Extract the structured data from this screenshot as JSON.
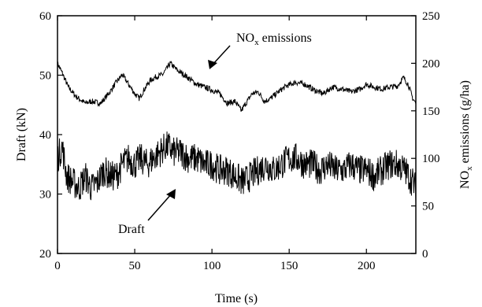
{
  "chart_data": {
    "type": "line",
    "xlabel": "Time (s)",
    "ylabel_left": "Draft (kN)",
    "ylabel_right": {
      "main": "NO",
      "sub": "x",
      "rest": " emissions (g/ha)"
    },
    "xlim": [
      0,
      232
    ],
    "ylim_left": [
      20,
      60
    ],
    "ylim_right": [
      0,
      250
    ],
    "x_ticks": [
      0,
      50,
      100,
      150,
      200
    ],
    "y_ticks_left": [
      20,
      30,
      40,
      50,
      60
    ],
    "y_ticks_right": [
      0,
      50,
      100,
      150,
      200,
      250
    ],
    "grid": false,
    "annotations": [
      {
        "text_main": "NO",
        "text_sub": "x",
        "text_rest": " emissions",
        "series": "nox"
      },
      {
        "text": "Draft",
        "series": "draft"
      }
    ],
    "series": [
      {
        "id": "nox",
        "axis": "right",
        "color": "#000000",
        "noise": 3.0,
        "x": [
          0,
          3,
          7,
          12,
          18,
          22,
          28,
          34,
          38,
          42,
          46,
          50,
          53,
          56,
          60,
          64,
          68,
          71,
          73,
          78,
          82,
          86,
          90,
          95,
          100,
          105,
          110,
          115,
          119,
          122,
          126,
          130,
          134,
          138,
          143,
          148,
          154,
          160,
          166,
          172,
          178,
          184,
          190,
          196,
          200,
          205,
          210,
          215,
          220,
          224,
          227,
          230,
          232
        ],
        "y": [
          200,
          190,
          175,
          165,
          158,
          160,
          158,
          170,
          180,
          188,
          178,
          168,
          163,
          172,
          182,
          186,
          188,
          195,
          200,
          192,
          188,
          183,
          178,
          175,
          172,
          168,
          158,
          160,
          150,
          158,
          168,
          170,
          160,
          163,
          170,
          176,
          180,
          178,
          172,
          168,
          175,
          173,
          170,
          173,
          178,
          175,
          173,
          175,
          176,
          185,
          178,
          163,
          158
        ]
      },
      {
        "id": "draft",
        "axis": "left",
        "color": "#000000",
        "noise": 2.6,
        "x": [
          0,
          3,
          6,
          10,
          14,
          18,
          22,
          26,
          30,
          34,
          38,
          42,
          46,
          50,
          54,
          58,
          62,
          66,
          70,
          72,
          75,
          80,
          85,
          90,
          95,
          100,
          105,
          110,
          115,
          120,
          125,
          130,
          135,
          140,
          145,
          150,
          155,
          160,
          165,
          170,
          175,
          180,
          185,
          190,
          195,
          200,
          205,
          210,
          215,
          220,
          225,
          230,
          232
        ],
        "y": [
          36,
          38,
          33,
          32,
          31,
          33,
          31,
          32,
          34,
          33,
          33,
          35,
          36,
          35,
          36,
          35,
          36,
          37,
          38,
          38,
          37,
          37,
          36,
          36,
          35,
          35,
          34,
          34,
          33,
          32,
          33,
          34,
          35,
          34,
          35,
          36,
          36,
          35,
          35,
          34,
          35,
          34,
          34,
          35,
          34,
          34,
          33,
          34,
          35,
          35,
          34,
          32,
          31
        ]
      }
    ]
  }
}
